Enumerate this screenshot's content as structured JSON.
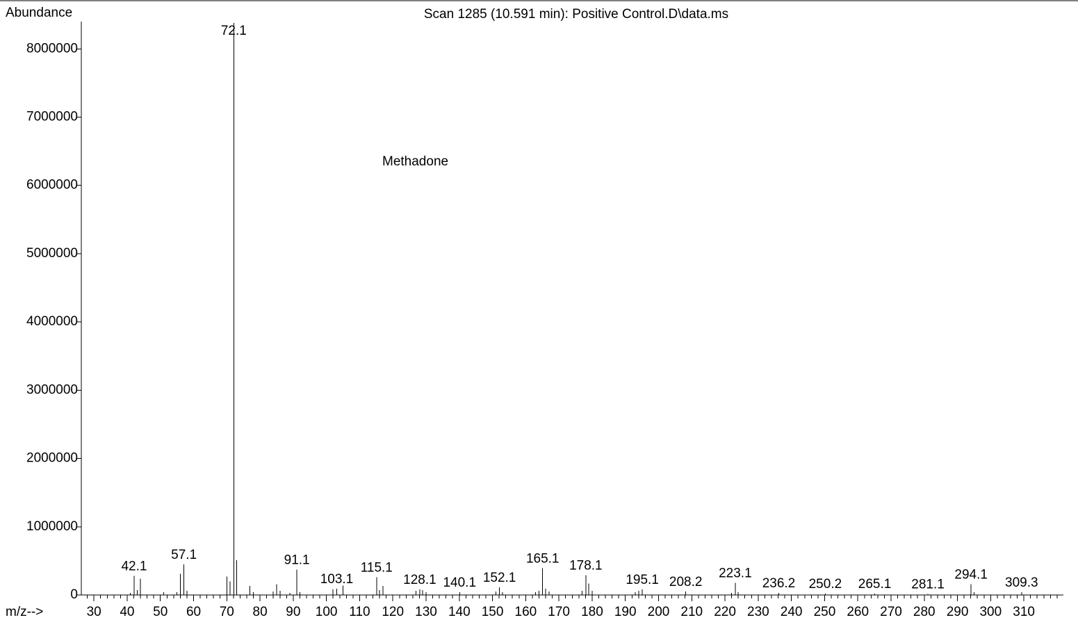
{
  "chart_data": {
    "type": "stem",
    "title": "Scan 1285 (10.591 min): Positive Control.D\\data.ms",
    "y_label": "Abundance",
    "x_label": "m/z-->",
    "annotation": "Methadone",
    "x": [
      42.1,
      57.1,
      72.1,
      91.1,
      103.1,
      115.1,
      128.1,
      140.1,
      152.1,
      165.1,
      178.1,
      195.1,
      208.2,
      223.1,
      236.2,
      250.2,
      265.1,
      281.1,
      294.1,
      309.3
    ],
    "values": [
      280000,
      450000,
      8380000,
      370000,
      90000,
      260000,
      80000,
      40000,
      110000,
      390000,
      290000,
      80000,
      50000,
      180000,
      30000,
      20000,
      20000,
      15000,
      160000,
      40000
    ],
    "minor_peaks": {
      "x": [
        41,
        43,
        44,
        51,
        55,
        56,
        58,
        70,
        71,
        73,
        77,
        78,
        84,
        85,
        86,
        89,
        92,
        102,
        105,
        116,
        117,
        127,
        129,
        130,
        151,
        153,
        163,
        164,
        166,
        167,
        177,
        179,
        180,
        193,
        194,
        222,
        224,
        295
      ],
      "values": [
        30000,
        70000,
        240000,
        40000,
        40000,
        310000,
        60000,
        270000,
        200000,
        510000,
        130000,
        40000,
        50000,
        160000,
        60000,
        30000,
        40000,
        80000,
        140000,
        70000,
        130000,
        60000,
        70000,
        40000,
        50000,
        40000,
        40000,
        60000,
        90000,
        50000,
        60000,
        170000,
        60000,
        40000,
        60000,
        30000,
        40000,
        40000
      ]
    },
    "color": "#000000",
    "xlim": [
      26.2,
      321.9
    ],
    "ylim": [
      0,
      8400000
    ],
    "xticks": [
      30,
      40,
      50,
      60,
      70,
      80,
      90,
      100,
      110,
      120,
      130,
      140,
      150,
      160,
      170,
      180,
      190,
      200,
      210,
      220,
      230,
      240,
      250,
      260,
      270,
      280,
      290,
      300,
      310
    ],
    "xminor_ticks": [
      28,
      32,
      34,
      36,
      38,
      42,
      44,
      46,
      48,
      52,
      54,
      56,
      58,
      62,
      64,
      66,
      68,
      72,
      74,
      76,
      78,
      82,
      84,
      86,
      88,
      92,
      94,
      96,
      98,
      102,
      104,
      106,
      108,
      112,
      114,
      116,
      118,
      122,
      124,
      126,
      128,
      132,
      134,
      136,
      138,
      142,
      144,
      146,
      148,
      152,
      154,
      156,
      158,
      162,
      164,
      166,
      168,
      172,
      174,
      176,
      178,
      182,
      184,
      186,
      188,
      192,
      194,
      196,
      198,
      202,
      204,
      206,
      208,
      212,
      214,
      216,
      218,
      222,
      224,
      226,
      228,
      232,
      234,
      236,
      238,
      242,
      244,
      246,
      248,
      252,
      254,
      256,
      258,
      262,
      264,
      266,
      268,
      272,
      274,
      276,
      278,
      282,
      284,
      286,
      288,
      292,
      294,
      296,
      298,
      302,
      304,
      306,
      308,
      312,
      314,
      316,
      318,
      320
    ],
    "yticks": [
      0,
      1000000,
      2000000,
      3000000,
      4000000,
      5000000,
      6000000,
      7000000,
      8000000
    ]
  }
}
